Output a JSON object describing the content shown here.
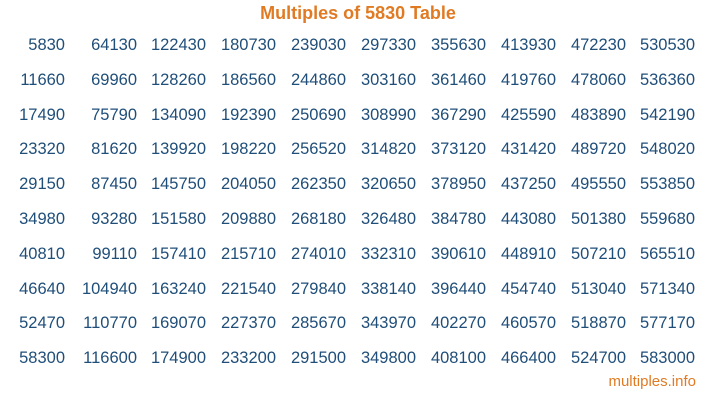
{
  "title": "Multiples of 5830 Table",
  "footer": "multiples.info",
  "colors": {
    "title": "#e07b24",
    "numbers": "#1f4e79",
    "footer": "#e07b24"
  },
  "rows": [
    [
      "5830",
      "64130",
      "122430",
      "180730",
      "239030",
      "297330",
      "355630",
      "413930",
      "472230",
      "530530"
    ],
    [
      "11660",
      "69960",
      "128260",
      "186560",
      "244860",
      "303160",
      "361460",
      "419760",
      "478060",
      "536360"
    ],
    [
      "17490",
      "75790",
      "134090",
      "192390",
      "250690",
      "308990",
      "367290",
      "425590",
      "483890",
      "542190"
    ],
    [
      "23320",
      "81620",
      "139920",
      "198220",
      "256520",
      "314820",
      "373120",
      "431420",
      "489720",
      "548020"
    ],
    [
      "29150",
      "87450",
      "145750",
      "204050",
      "262350",
      "320650",
      "378950",
      "437250",
      "495550",
      "553850"
    ],
    [
      "34980",
      "93280",
      "151580",
      "209880",
      "268180",
      "326480",
      "384780",
      "443080",
      "501380",
      "559680"
    ],
    [
      "40810",
      "99110",
      "157410",
      "215710",
      "274010",
      "332310",
      "390610",
      "448910",
      "507210",
      "565510"
    ],
    [
      "46640",
      "104940",
      "163240",
      "221540",
      "279840",
      "338140",
      "396440",
      "454740",
      "513040",
      "571340"
    ],
    [
      "52470",
      "110770",
      "169070",
      "227370",
      "285670",
      "343970",
      "402270",
      "460570",
      "518870",
      "577170"
    ],
    [
      "58300",
      "116600",
      "174900",
      "233200",
      "291500",
      "349800",
      "408100",
      "466400",
      "524700",
      "583000"
    ]
  ]
}
